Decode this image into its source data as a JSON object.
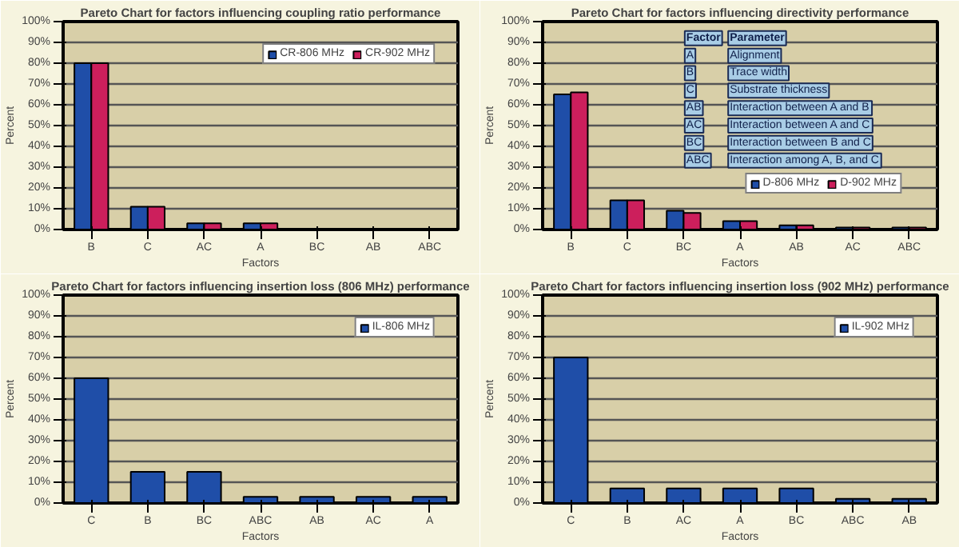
{
  "chart_data": [
    {
      "type": "bar",
      "title": "Pareto Chart for factors influencing coupling ratio performance",
      "xlabel": "Factors",
      "ylabel": "Percent",
      "categories": [
        "B",
        "C",
        "AC",
        "A",
        "BC",
        "AB",
        "ABC"
      ],
      "series": [
        {
          "name": "CR-806 MHz",
          "color": "#1f4ea8",
          "values": [
            80,
            11,
            3,
            3,
            0,
            0,
            0
          ]
        },
        {
          "name": "CR-902 MHz",
          "color": "#cc1f5c",
          "values": [
            80,
            11,
            3,
            3,
            0,
            0,
            0
          ]
        }
      ],
      "ylim": [
        0,
        100
      ],
      "yticks": [
        {
          "value": 0,
          "label": "0%"
        },
        {
          "value": 10,
          "label": "10%"
        },
        {
          "value": 20,
          "label": "20%"
        },
        {
          "value": 30,
          "label": "30%"
        },
        {
          "value": 40,
          "label": "40%"
        },
        {
          "value": 50,
          "label": "50%"
        },
        {
          "value": 60,
          "label": "60%"
        },
        {
          "value": 70,
          "label": "70%"
        },
        {
          "value": 80,
          "label": "80%"
        },
        {
          "value": 90,
          "label": "90%"
        },
        {
          "value": 100,
          "label": "100%"
        }
      ],
      "grid": "y",
      "legend": "top right"
    },
    {
      "type": "bar",
      "title": "Pareto Chart for factors influencing directivity performance",
      "xlabel": "Factors",
      "ylabel": "Percent",
      "categories": [
        "B",
        "C",
        "BC",
        "A",
        "AB",
        "AC",
        "ABC"
      ],
      "series": [
        {
          "name": "D-806 MHz",
          "color": "#1f4ea8",
          "values": [
            65,
            14,
            9,
            4,
            2,
            1,
            1
          ]
        },
        {
          "name": "D-902 MHz",
          "color": "#cc1f5c",
          "values": [
            66,
            14,
            8,
            4,
            2,
            1,
            1
          ]
        }
      ],
      "ylim": [
        0,
        100
      ],
      "yticks": [
        {
          "value": 0,
          "label": "0%"
        },
        {
          "value": 10,
          "label": "10%"
        },
        {
          "value": 20,
          "label": "20%"
        },
        {
          "value": 30,
          "label": "30%"
        },
        {
          "value": 40,
          "label": "40%"
        },
        {
          "value": 50,
          "label": "50%"
        },
        {
          "value": 60,
          "label": "60%"
        },
        {
          "value": 70,
          "label": "70%"
        },
        {
          "value": 80,
          "label": "80%"
        },
        {
          "value": 90,
          "label": "90%"
        },
        {
          "value": 100,
          "label": "100%"
        }
      ],
      "grid": "y",
      "legend": "bottom right",
      "annotations": [
        "Factor",
        "Parameter",
        "A",
        "Alignment",
        "B",
        "Trace width",
        "C",
        "Substrate thickness",
        "AB",
        "Interaction between A and B",
        "AC",
        "Interaction between A and C",
        "BC",
        "Interaction between B and C",
        "ABC",
        "Interaction among A, B, and C"
      ]
    },
    {
      "type": "bar",
      "title": "Pareto Chart for factors influencing insertion loss (806 MHz) performance",
      "xlabel": "Factors",
      "ylabel": "Percent",
      "categories": [
        "C",
        "B",
        "BC",
        "ABC",
        "AB",
        "AC",
        "A"
      ],
      "series": [
        {
          "name": "IL-806 MHz",
          "color": "#1f4ea8",
          "values": [
            60,
            15,
            15,
            3,
            3,
            3,
            3
          ]
        }
      ],
      "ylim": [
        0,
        100
      ],
      "yticks": [
        {
          "value": 0,
          "label": "0%"
        },
        {
          "value": 10,
          "label": "10%"
        },
        {
          "value": 20,
          "label": "20%"
        },
        {
          "value": 30,
          "label": "30%"
        },
        {
          "value": 40,
          "label": "40%"
        },
        {
          "value": 50,
          "label": "50%"
        },
        {
          "value": 60,
          "label": "60%"
        },
        {
          "value": 70,
          "label": "70%"
        },
        {
          "value": 80,
          "label": "80%"
        },
        {
          "value": 90,
          "label": "90%"
        },
        {
          "value": 100,
          "label": "100%"
        }
      ],
      "grid": "y",
      "legend": "top right"
    },
    {
      "type": "bar",
      "title": "Pareto Chart for factors influencing insertion loss (902 MHz) performance",
      "xlabel": "Factors",
      "ylabel": "Percent",
      "categories": [
        "C",
        "B",
        "AC",
        "A",
        "BC",
        "ABC",
        "AB"
      ],
      "series": [
        {
          "name": "IL-902 MHz",
          "color": "#1f4ea8",
          "values": [
            70,
            7,
            7,
            7,
            7,
            2,
            2
          ]
        }
      ],
      "ylim": [
        0,
        100
      ],
      "yticks": [
        {
          "value": 0,
          "label": "0%"
        },
        {
          "value": 10,
          "label": "10%"
        },
        {
          "value": 20,
          "label": "20%"
        },
        {
          "value": 30,
          "label": "30%"
        },
        {
          "value": 40,
          "label": "40%"
        },
        {
          "value": 50,
          "label": "50%"
        },
        {
          "value": 60,
          "label": "60%"
        },
        {
          "value": 70,
          "label": "70%"
        },
        {
          "value": 80,
          "label": "80%"
        },
        {
          "value": 90,
          "label": "90%"
        },
        {
          "value": 100,
          "label": "100%"
        }
      ],
      "grid": "y",
      "legend": "top right"
    }
  ]
}
